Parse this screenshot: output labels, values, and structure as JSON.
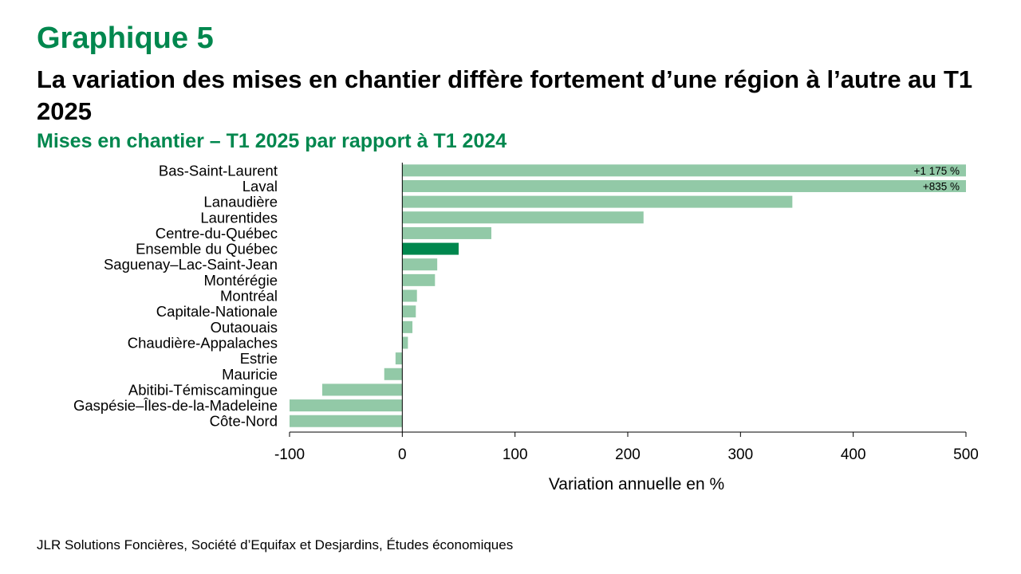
{
  "header": {
    "graph_number": "Graphique 5",
    "title": "La variation des mises en chantier diffère fortement d’une région à l’autre au T1 2025",
    "subtitle": "Mises en chantier – T1 2025 par rapport à T1 2024"
  },
  "footer": {
    "source": "JLR Solutions Foncières, Société d’Equifax et Desjardins, Études économiques"
  },
  "colors": {
    "bar": "#92c9a7",
    "highlight": "#00874e",
    "title_green": "#00874e",
    "axis": "#000000"
  },
  "chart_data": {
    "type": "bar",
    "orientation": "horizontal",
    "xlabel": "Variation annuelle en %",
    "xlim": [
      -100,
      500
    ],
    "xticks": [
      -100,
      0,
      100,
      200,
      300,
      400,
      500
    ],
    "grid": false,
    "categories": [
      "Bas-Saint-Laurent",
      "Laval",
      "Lanaudière",
      "Laurentides",
      "Centre-du-Québec",
      "Ensemble du Québec",
      "Saguenay–Lac-Saint-Jean",
      "Montérégie",
      "Montréal",
      "Capitale-Nationale",
      "Outaouais",
      "Chaudière-Appalaches",
      "Estrie",
      "Mauricie",
      "Abitibi-Témiscamingue",
      "Gaspésie–Îles-de-la-Madeleine",
      "Côte-Nord"
    ],
    "values": [
      1175,
      835,
      346,
      214,
      79,
      50,
      31,
      29,
      13,
      12,
      9,
      5,
      -6,
      -16,
      -71,
      -100,
      -100
    ],
    "highlight_index": 5,
    "data_labels": [
      "+1 175 %",
      "+835 %",
      "",
      "",
      "",
      "",
      "",
      "",
      "",
      "",
      "",
      "",
      "",
      "",
      "",
      "",
      ""
    ]
  }
}
